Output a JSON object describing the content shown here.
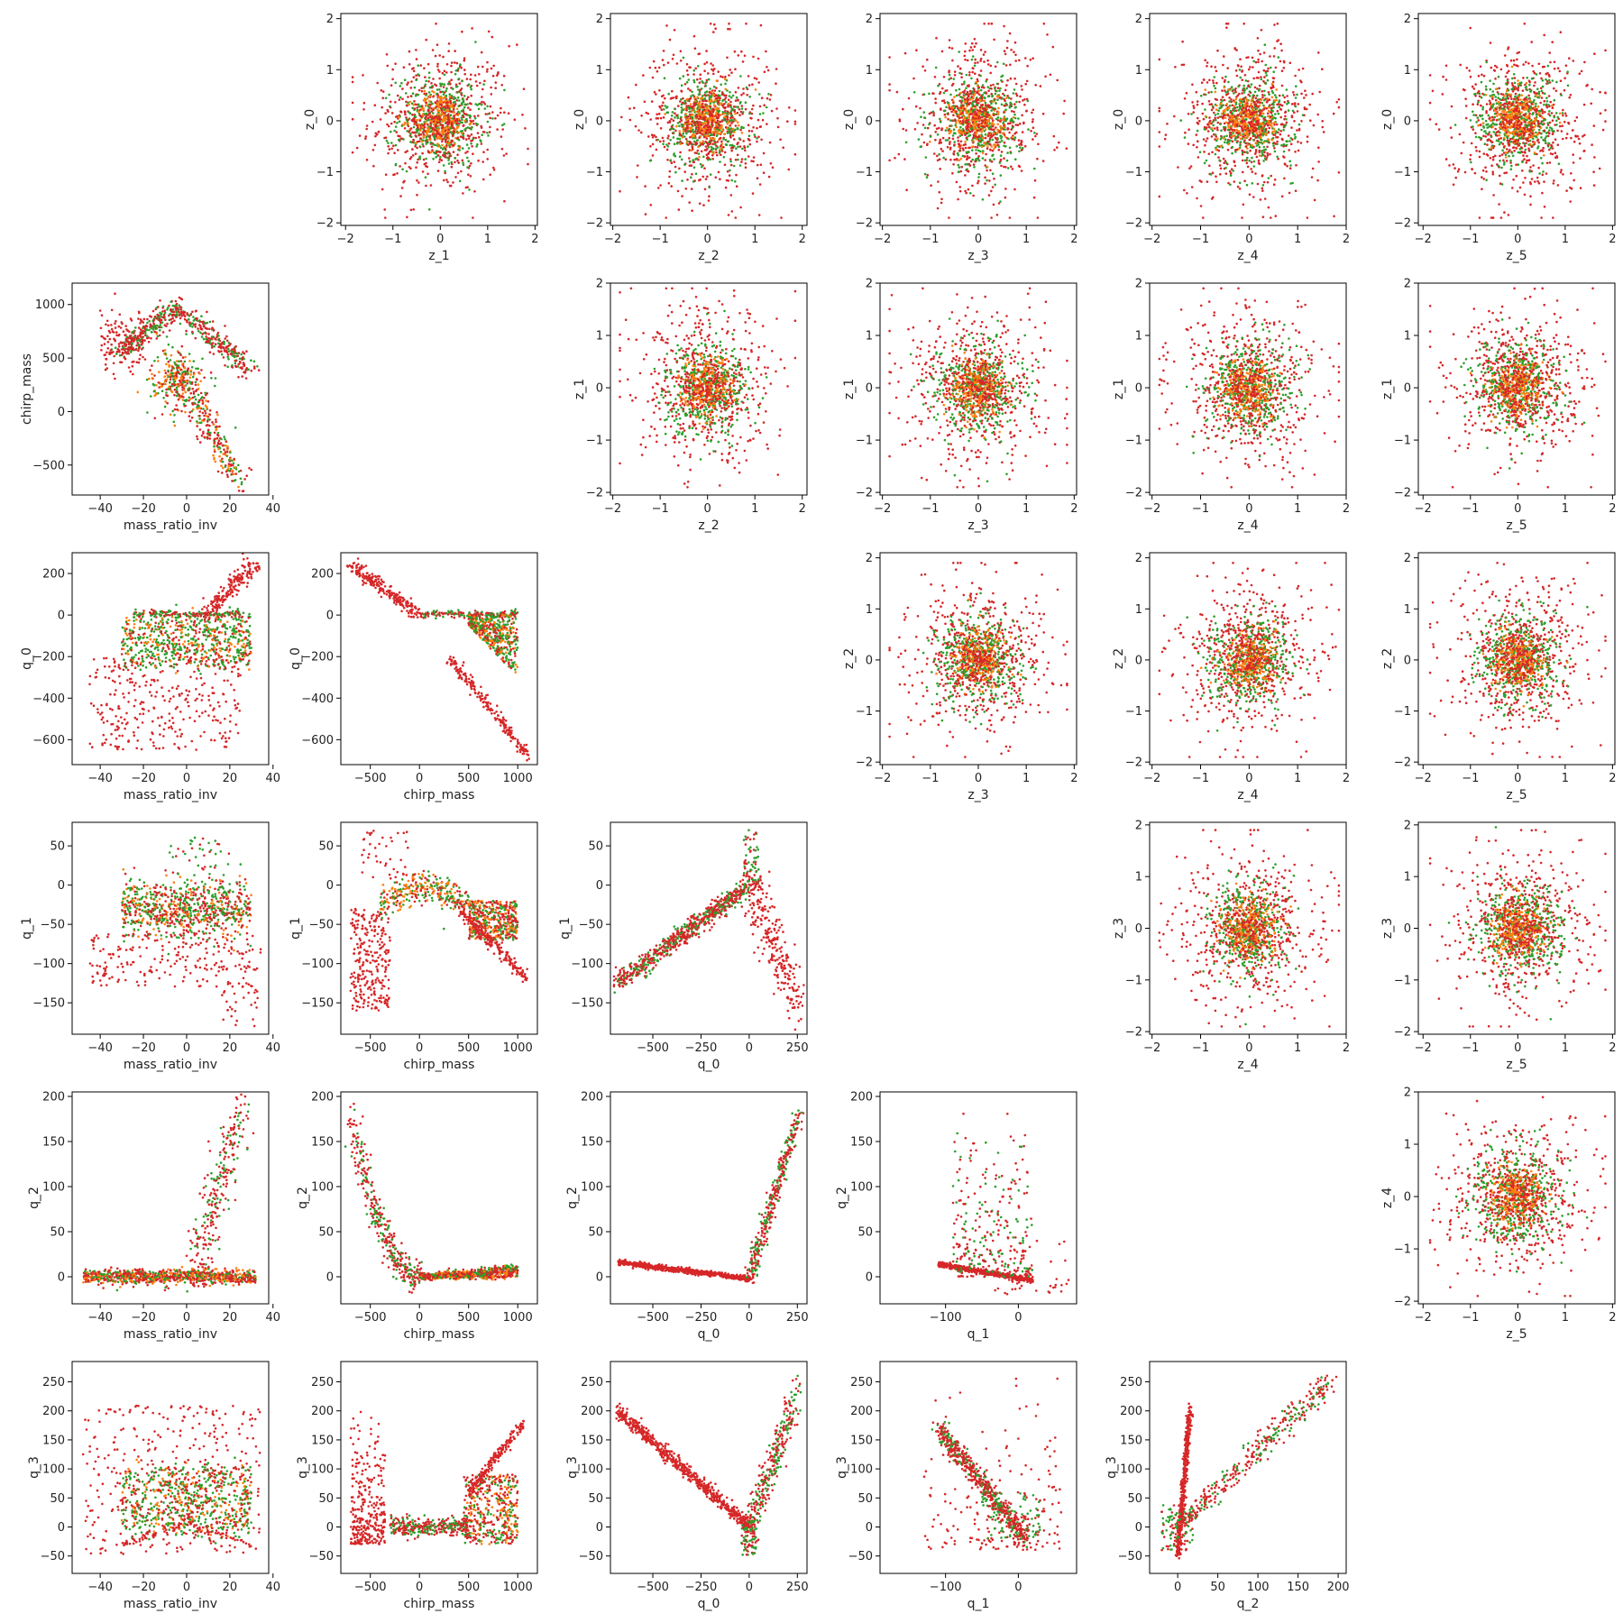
{
  "figure": {
    "description_free": true
  },
  "colors": {
    "series": [
      "#d62728",
      "#2ca02c",
      "#ff7f0e",
      "#1f77b4"
    ],
    "frame": "#000000"
  },
  "chart_data": {
    "type": "scatter",
    "layout": "corner-pair-plot",
    "grid": false,
    "series_colors": [
      "red",
      "green",
      "orange"
    ],
    "panels": [
      {
        "row": 0,
        "col": 1,
        "xlabel": "z_1",
        "ylabel": "z_0",
        "xticks": [
          -2,
          -1,
          0,
          1,
          2
        ],
        "yticks": [
          -2,
          -1,
          0,
          1,
          2
        ],
        "xlim": [
          -2.1,
          2.05
        ],
        "ylim": [
          -2.05,
          2.1
        ],
        "pattern": "gauss",
        "params": {
          "cx": 0,
          "cy": 0,
          "sx": 0.6,
          "sy": 0.6
        }
      },
      {
        "row": 0,
        "col": 2,
        "xlabel": "z_2",
        "ylabel": "z_0",
        "xticks": [
          -2,
          -1,
          0,
          1,
          2
        ],
        "yticks": [
          -2,
          -1,
          0,
          1,
          2
        ],
        "xlim": [
          -2.05,
          2.1
        ],
        "ylim": [
          -2.05,
          2.1
        ],
        "pattern": "gauss",
        "params": {
          "cx": 0,
          "cy": 0,
          "sx": 0.6,
          "sy": 0.6
        }
      },
      {
        "row": 0,
        "col": 3,
        "xlabel": "z_3",
        "ylabel": "z_0",
        "xticks": [
          -2,
          -1,
          0,
          1,
          2
        ],
        "yticks": [
          -2,
          -1,
          0,
          1,
          2
        ],
        "xlim": [
          -2.05,
          2.05
        ],
        "ylim": [
          -2.05,
          2.1
        ],
        "pattern": "gauss",
        "params": {
          "cx": 0,
          "cy": 0,
          "sx": 0.6,
          "sy": 0.6
        }
      },
      {
        "row": 0,
        "col": 4,
        "xlabel": "z_4",
        "ylabel": "z_0",
        "xticks": [
          -2,
          -1,
          0,
          1,
          2
        ],
        "yticks": [
          -2,
          -1,
          0,
          1,
          2
        ],
        "xlim": [
          -2.05,
          2.0
        ],
        "ylim": [
          -2.05,
          2.1
        ],
        "pattern": "gauss",
        "params": {
          "cx": 0,
          "cy": 0,
          "sx": 0.6,
          "sy": 0.6
        }
      },
      {
        "row": 0,
        "col": 5,
        "xlabel": "z_5",
        "ylabel": "z_0",
        "xticks": [
          -2,
          -1,
          0,
          1,
          2
        ],
        "yticks": [
          -2,
          -1,
          0,
          1,
          2
        ],
        "xlim": [
          -2.1,
          2.05
        ],
        "ylim": [
          -2.05,
          2.1
        ],
        "pattern": "gauss",
        "params": {
          "cx": 0,
          "cy": 0,
          "sx": 0.6,
          "sy": 0.6
        }
      },
      {
        "row": 1,
        "col": 0,
        "xlabel": "mass_ratio_inv",
        "ylabel": "chirp_mass",
        "xticks": [
          -40,
          -20,
          0,
          20,
          40
        ],
        "yticks": [
          -500,
          0,
          500,
          1000
        ],
        "xlim": [
          -53,
          38
        ],
        "ylim": [
          -780,
          1200
        ],
        "pattern": "chirp_mri",
        "params": {}
      },
      {
        "row": 1,
        "col": 2,
        "xlabel": "z_2",
        "ylabel": "z_1",
        "xticks": [
          -2,
          -1,
          0,
          1,
          2
        ],
        "yticks": [
          -2,
          -1,
          0,
          1,
          2
        ],
        "xlim": [
          -2.05,
          2.1
        ],
        "ylim": [
          -2.05,
          2.0
        ],
        "pattern": "gauss",
        "params": {
          "cx": 0,
          "cy": 0,
          "sx": 0.6,
          "sy": 0.6
        }
      },
      {
        "row": 1,
        "col": 3,
        "xlabel": "z_3",
        "ylabel": "z_1",
        "xticks": [
          -2,
          -1,
          0,
          1,
          2
        ],
        "yticks": [
          -2,
          -1,
          0,
          1,
          2
        ],
        "xlim": [
          -2.05,
          2.05
        ],
        "ylim": [
          -2.05,
          2.0
        ],
        "pattern": "gauss",
        "params": {
          "cx": 0,
          "cy": 0,
          "sx": 0.6,
          "sy": 0.6
        }
      },
      {
        "row": 1,
        "col": 4,
        "xlabel": "z_4",
        "ylabel": "z_1",
        "xticks": [
          -2,
          -1,
          0,
          1,
          2
        ],
        "yticks": [
          -2,
          -1,
          0,
          1,
          2
        ],
        "xlim": [
          -2.05,
          2.0
        ],
        "ylim": [
          -2.05,
          2.0
        ],
        "pattern": "gauss",
        "params": {
          "cx": 0,
          "cy": 0,
          "sx": 0.6,
          "sy": 0.6
        }
      },
      {
        "row": 1,
        "col": 5,
        "xlabel": "z_5",
        "ylabel": "z_1",
        "xticks": [
          -2,
          -1,
          0,
          1,
          2
        ],
        "yticks": [
          -2,
          -1,
          0,
          1,
          2
        ],
        "xlim": [
          -2.1,
          2.05
        ],
        "ylim": [
          -2.05,
          2.0
        ],
        "pattern": "gauss",
        "params": {
          "cx": 0,
          "cy": 0,
          "sx": 0.6,
          "sy": 0.6
        }
      },
      {
        "row": 2,
        "col": 0,
        "xlabel": "mass_ratio_inv",
        "ylabel": "q_0",
        "xticks": [
          -40,
          -20,
          0,
          20,
          40
        ],
        "yticks": [
          -600,
          -400,
          -200,
          0,
          200
        ],
        "xlim": [
          -53,
          38
        ],
        "ylim": [
          -720,
          300
        ],
        "pattern": "q0_mri",
        "params": {}
      },
      {
        "row": 2,
        "col": 1,
        "xlabel": "chirp_mass",
        "ylabel": "q_0",
        "xticks": [
          -500,
          0,
          500,
          1000
        ],
        "yticks": [
          -600,
          -400,
          -200,
          0,
          200
        ],
        "xlim": [
          -800,
          1200
        ],
        "ylim": [
          -720,
          300
        ],
        "pattern": "q0_chirp",
        "params": {}
      },
      {
        "row": 2,
        "col": 3,
        "xlabel": "z_3",
        "ylabel": "z_2",
        "xticks": [
          -2,
          -1,
          0,
          1,
          2
        ],
        "yticks": [
          -2,
          -1,
          0,
          1,
          2
        ],
        "xlim": [
          -2.05,
          2.05
        ],
        "ylim": [
          -2.05,
          2.1
        ],
        "pattern": "gauss",
        "params": {
          "cx": 0,
          "cy": 0,
          "sx": 0.6,
          "sy": 0.6
        }
      },
      {
        "row": 2,
        "col": 4,
        "xlabel": "z_4",
        "ylabel": "z_2",
        "xticks": [
          -2,
          -1,
          0,
          1,
          2
        ],
        "yticks": [
          -2,
          -1,
          0,
          1,
          2
        ],
        "xlim": [
          -2.05,
          2.0
        ],
        "ylim": [
          -2.05,
          2.1
        ],
        "pattern": "gauss",
        "params": {
          "cx": 0,
          "cy": 0,
          "sx": 0.6,
          "sy": 0.6
        }
      },
      {
        "row": 2,
        "col": 5,
        "xlabel": "z_5",
        "ylabel": "z_2",
        "xticks": [
          -2,
          -1,
          0,
          1,
          2
        ],
        "yticks": [
          -2,
          -1,
          0,
          1,
          2
        ],
        "xlim": [
          -2.1,
          2.05
        ],
        "ylim": [
          -2.05,
          2.1
        ],
        "pattern": "gauss",
        "params": {
          "cx": 0,
          "cy": 0,
          "sx": 0.6,
          "sy": 0.6
        }
      },
      {
        "row": 3,
        "col": 0,
        "xlabel": "mass_ratio_inv",
        "ylabel": "q_1",
        "xticks": [
          -40,
          -20,
          0,
          20,
          40
        ],
        "yticks": [
          -150,
          -100,
          -50,
          0,
          50
        ],
        "xlim": [
          -53,
          38
        ],
        "ylim": [
          -190,
          80
        ],
        "pattern": "q1_mri",
        "params": {}
      },
      {
        "row": 3,
        "col": 1,
        "xlabel": "chirp_mass",
        "ylabel": "q_1",
        "xticks": [
          -500,
          0,
          500,
          1000
        ],
        "yticks": [
          -150,
          -100,
          -50,
          0,
          50
        ],
        "xlim": [
          -800,
          1200
        ],
        "ylim": [
          -190,
          80
        ],
        "pattern": "q1_chirp",
        "params": {}
      },
      {
        "row": 3,
        "col": 2,
        "xlabel": "q_0",
        "ylabel": "q_1",
        "xticks": [
          -500,
          -250,
          0,
          250
        ],
        "yticks": [
          -150,
          -100,
          -50,
          0,
          50
        ],
        "xlim": [
          -720,
          300
        ],
        "ylim": [
          -190,
          80
        ],
        "pattern": "q1_q0",
        "params": {}
      },
      {
        "row": 3,
        "col": 4,
        "xlabel": "z_4",
        "ylabel": "z_3",
        "xticks": [
          -2,
          -1,
          0,
          1,
          2
        ],
        "yticks": [
          -2,
          -1,
          0,
          1,
          2
        ],
        "xlim": [
          -2.05,
          2.0
        ],
        "ylim": [
          -2.05,
          2.05
        ],
        "pattern": "gauss",
        "params": {
          "cx": 0,
          "cy": 0,
          "sx": 0.6,
          "sy": 0.6
        }
      },
      {
        "row": 3,
        "col": 5,
        "xlabel": "z_5",
        "ylabel": "z_3",
        "xticks": [
          -2,
          -1,
          0,
          1,
          2
        ],
        "yticks": [
          -2,
          -1,
          0,
          1,
          2
        ],
        "xlim": [
          -2.1,
          2.05
        ],
        "ylim": [
          -2.05,
          2.05
        ],
        "pattern": "gauss",
        "params": {
          "cx": 0,
          "cy": 0,
          "sx": 0.6,
          "sy": 0.6
        }
      },
      {
        "row": 4,
        "col": 0,
        "xlabel": "mass_ratio_inv",
        "ylabel": "q_2",
        "xticks": [
          -40,
          -20,
          0,
          20,
          40
        ],
        "yticks": [
          0,
          50,
          100,
          150,
          200
        ],
        "xlim": [
          -53,
          38
        ],
        "ylim": [
          -30,
          205
        ],
        "pattern": "q2_mri",
        "params": {}
      },
      {
        "row": 4,
        "col": 1,
        "xlabel": "chirp_mass",
        "ylabel": "q_2",
        "xticks": [
          -500,
          0,
          500,
          1000
        ],
        "yticks": [
          0,
          50,
          100,
          150,
          200
        ],
        "xlim": [
          -800,
          1200
        ],
        "ylim": [
          -30,
          205
        ],
        "pattern": "q2_chirp",
        "params": {}
      },
      {
        "row": 4,
        "col": 2,
        "xlabel": "q_0",
        "ylabel": "q_2",
        "xticks": [
          -500,
          -250,
          0,
          250
        ],
        "yticks": [
          0,
          50,
          100,
          150,
          200
        ],
        "xlim": [
          -720,
          300
        ],
        "ylim": [
          -30,
          205
        ],
        "pattern": "q2_q0",
        "params": {}
      },
      {
        "row": 4,
        "col": 3,
        "xlabel": "q_1",
        "ylabel": "q_2",
        "xticks": [
          -100,
          0
        ],
        "yticks": [
          0,
          50,
          100,
          150,
          200
        ],
        "xlim": [
          -190,
          80
        ],
        "ylim": [
          -30,
          205
        ],
        "pattern": "q2_q1",
        "params": {}
      },
      {
        "row": 4,
        "col": 5,
        "xlabel": "z_5",
        "ylabel": "z_4",
        "xticks": [
          -2,
          -1,
          0,
          1,
          2
        ],
        "yticks": [
          -2,
          -1,
          0,
          1,
          2
        ],
        "xlim": [
          -2.1,
          2.05
        ],
        "ylim": [
          -2.05,
          2.0
        ],
        "pattern": "gauss",
        "params": {
          "cx": 0,
          "cy": 0,
          "sx": 0.6,
          "sy": 0.6
        }
      },
      {
        "row": 5,
        "col": 0,
        "xlabel": "mass_ratio_inv",
        "ylabel": "q_3",
        "xticks": [
          -40,
          -20,
          0,
          20,
          40
        ],
        "yticks": [
          -50,
          0,
          50,
          100,
          150,
          200,
          250
        ],
        "xlim": [
          -53,
          38
        ],
        "ylim": [
          -80,
          285
        ],
        "pattern": "q3_mri",
        "params": {}
      },
      {
        "row": 5,
        "col": 1,
        "xlabel": "chirp_mass",
        "ylabel": "q_3",
        "xticks": [
          -500,
          0,
          500,
          1000
        ],
        "yticks": [
          -50,
          0,
          50,
          100,
          150,
          200,
          250
        ],
        "xlim": [
          -800,
          1200
        ],
        "ylim": [
          -80,
          285
        ],
        "pattern": "q3_chirp",
        "params": {}
      },
      {
        "row": 5,
        "col": 2,
        "xlabel": "q_0",
        "ylabel": "q_3",
        "xticks": [
          -500,
          -250,
          0,
          250
        ],
        "yticks": [
          -50,
          0,
          50,
          100,
          150,
          200,
          250
        ],
        "xlim": [
          -720,
          300
        ],
        "ylim": [
          -80,
          285
        ],
        "pattern": "q3_q0",
        "params": {}
      },
      {
        "row": 5,
        "col": 3,
        "xlabel": "q_1",
        "ylabel": "q_3",
        "xticks": [
          -100,
          0
        ],
        "yticks": [
          -50,
          0,
          50,
          100,
          150,
          200,
          250
        ],
        "xlim": [
          -190,
          80
        ],
        "ylim": [
          -80,
          285
        ],
        "pattern": "q3_q1",
        "params": {}
      },
      {
        "row": 5,
        "col": 4,
        "xlabel": "q_2",
        "ylabel": "q_3",
        "xticks": [
          0,
          50,
          100,
          150,
          200
        ],
        "yticks": [
          -50,
          0,
          50,
          100,
          150,
          200,
          250
        ],
        "xlim": [
          -35,
          210
        ],
        "ylim": [
          -80,
          285
        ],
        "pattern": "q3_q2",
        "params": {}
      }
    ]
  }
}
